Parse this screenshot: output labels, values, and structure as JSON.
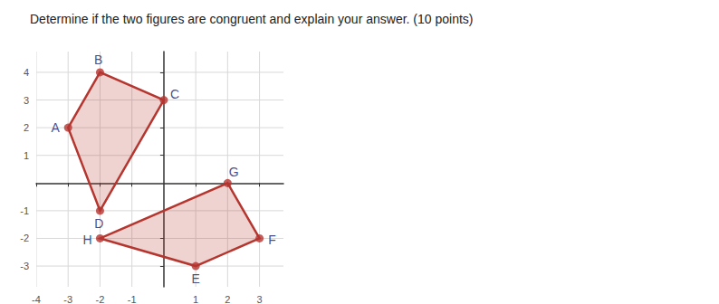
{
  "chart_data": {
    "type": "polygon",
    "title": "Determine if the two figures are congruent and explain your answer. (10 points)",
    "xlim": [
      -4,
      3.75
    ],
    "ylim": [
      -3.75,
      4.75
    ],
    "xticks": [
      -4,
      -3,
      -2,
      -1,
      1,
      2,
      3
    ],
    "yticks": [
      -3,
      -2,
      -1,
      1,
      2,
      3,
      4
    ],
    "grid": true,
    "color": "#b5352f",
    "shapes": [
      {
        "points": [
          {
            "label": "A",
            "x": -3,
            "y": 2
          },
          {
            "label": "B",
            "x": -2,
            "y": 4
          },
          {
            "label": "C",
            "x": 0,
            "y": 3
          },
          {
            "label": "D",
            "x": -2,
            "y": -1
          }
        ]
      },
      {
        "points": [
          {
            "label": "G",
            "x": 2,
            "y": 0
          },
          {
            "label": "F",
            "x": 3,
            "y": -2
          },
          {
            "label": "E",
            "x": 1,
            "y": -3
          },
          {
            "label": "H",
            "x": -2,
            "y": -2
          }
        ]
      }
    ]
  }
}
